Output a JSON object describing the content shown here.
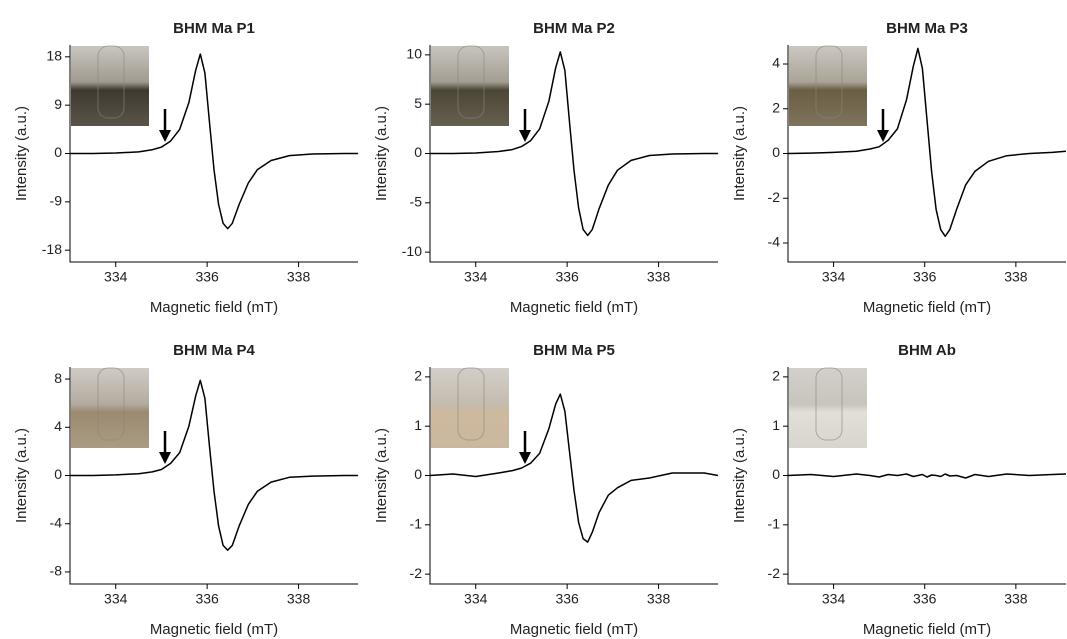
{
  "chart_data": [
    {
      "type": "line",
      "title": "BHM Ma P1",
      "xlabel": "Magnetic field (mT)",
      "ylabel": "Intensity (a.u.)",
      "color": "#000000",
      "xlim": [
        333,
        339.3
      ],
      "xticks": [
        334,
        336,
        338
      ],
      "ylim": [
        -20.2,
        20.2
      ],
      "yticks": [
        -18,
        -9,
        0,
        9,
        18
      ],
      "x": [
        333,
        333.5,
        334,
        334.5,
        334.8,
        335,
        335.2,
        335.4,
        335.6,
        335.75,
        335.85,
        335.95,
        336.05,
        336.15,
        336.25,
        336.35,
        336.45,
        336.55,
        336.7,
        336.9,
        337.1,
        337.4,
        337.8,
        338.3,
        339,
        339.3
      ],
      "values": [
        0,
        0,
        0.1,
        0.3,
        0.7,
        1.2,
        2.3,
        4.5,
        9.5,
        15.5,
        18.5,
        15,
        6,
        -3,
        -9.5,
        -13,
        -14,
        -13,
        -9.5,
        -5.5,
        -3,
        -1.3,
        -0.4,
        -0.1,
        0,
        0
      ]
    },
    {
      "type": "line",
      "title": "BHM Ma P2",
      "xlabel": "Magnetic field (mT)",
      "ylabel": "Intensity (a.u.)",
      "color": "#000000",
      "xlim": [
        333,
        339.3
      ],
      "xticks": [
        334,
        336,
        338
      ],
      "ylim": [
        -11,
        11
      ],
      "yticks": [
        -10,
        -5,
        0,
        5,
        10
      ],
      "x": [
        333,
        333.5,
        334,
        334.5,
        334.8,
        335,
        335.2,
        335.4,
        335.6,
        335.75,
        335.85,
        335.95,
        336.05,
        336.15,
        336.25,
        336.35,
        336.45,
        336.55,
        336.7,
        336.9,
        337.1,
        337.4,
        337.8,
        338.3,
        339,
        339.3
      ],
      "values": [
        0,
        0,
        0.05,
        0.2,
        0.4,
        0.7,
        1.3,
        2.5,
        5.3,
        8.7,
        10.3,
        8.4,
        3.3,
        -1.7,
        -5.5,
        -7.7,
        -8.3,
        -7.7,
        -5.6,
        -3.2,
        -1.7,
        -0.7,
        -0.2,
        -0.05,
        0,
        0
      ]
    },
    {
      "type": "line",
      "title": "BHM Ma P3",
      "xlabel": "Magnetic field (mT)",
      "ylabel": "Intensity (a.u.)",
      "color": "#000000",
      "xlim": [
        333,
        339.1
      ],
      "xticks": [
        334,
        336,
        338
      ],
      "ylim": [
        -4.85,
        4.85
      ],
      "yticks": [
        -4,
        -2,
        0,
        2,
        4
      ],
      "x": [
        333,
        333.5,
        334,
        334.5,
        334.8,
        335,
        335.2,
        335.4,
        335.6,
        335.75,
        335.85,
        335.95,
        336.05,
        336.15,
        336.25,
        336.35,
        336.45,
        336.55,
        336.7,
        336.9,
        337.1,
        337.4,
        337.8,
        338.3,
        338.8,
        339.1
      ],
      "values": [
        0,
        0.02,
        0.05,
        0.1,
        0.2,
        0.3,
        0.6,
        1.1,
        2.4,
        3.9,
        4.7,
        3.8,
        1.5,
        -0.8,
        -2.5,
        -3.4,
        -3.7,
        -3.4,
        -2.5,
        -1.4,
        -0.8,
        -0.35,
        -0.1,
        0,
        0.05,
        0.1
      ]
    },
    {
      "type": "line",
      "title": "BHM Ma P4",
      "xlabel": "Magnetic field (mT)",
      "ylabel": "Intensity (a.u.)",
      "color": "#000000",
      "xlim": [
        333,
        339.3
      ],
      "xticks": [
        334,
        336,
        338
      ],
      "ylim": [
        -9,
        9
      ],
      "yticks": [
        -8,
        -4,
        0,
        4,
        8
      ],
      "x": [
        333,
        333.5,
        334,
        334.5,
        334.8,
        335,
        335.2,
        335.4,
        335.6,
        335.75,
        335.85,
        335.95,
        336.05,
        336.15,
        336.25,
        336.35,
        336.45,
        336.55,
        336.7,
        336.9,
        337.1,
        337.4,
        337.8,
        338.3,
        339,
        339.3
      ],
      "values": [
        0,
        0,
        0.05,
        0.15,
        0.3,
        0.5,
        1,
        1.9,
        4.1,
        6.6,
        7.9,
        6.4,
        2.5,
        -1.3,
        -4.2,
        -5.8,
        -6.2,
        -5.8,
        -4.2,
        -2.4,
        -1.3,
        -0.55,
        -0.15,
        -0.05,
        0,
        0
      ]
    },
    {
      "type": "line",
      "title": "BHM Ma P5",
      "xlabel": "Magnetic field (mT)",
      "ylabel": "Intensity (a.u.)",
      "color": "#000000",
      "xlim": [
        333,
        339.3
      ],
      "xticks": [
        334,
        336,
        338
      ],
      "ylim": [
        -2.2,
        2.2
      ],
      "yticks": [
        -2,
        -1,
        0,
        1,
        2
      ],
      "x": [
        333,
        333.5,
        334,
        334.5,
        334.8,
        335,
        335.2,
        335.4,
        335.6,
        335.75,
        335.85,
        335.95,
        336.05,
        336.15,
        336.25,
        336.35,
        336.45,
        336.55,
        336.7,
        336.9,
        337.1,
        337.4,
        337.8,
        338.3,
        339,
        339.3
      ],
      "values": [
        0,
        0.03,
        -0.02,
        0.05,
        0.1,
        0.15,
        0.25,
        0.45,
        0.95,
        1.45,
        1.65,
        1.3,
        0.5,
        -0.3,
        -0.95,
        -1.28,
        -1.35,
        -1.15,
        -0.75,
        -0.4,
        -0.25,
        -0.1,
        -0.05,
        0.05,
        0.05,
        0
      ]
    },
    {
      "type": "line",
      "title": "BHM Ab",
      "xlabel": "Magnetic field (mT)",
      "ylabel": "Intensity (a.u.)",
      "color": "#000000",
      "xlim": [
        333,
        339.1
      ],
      "xticks": [
        334,
        336,
        338
      ],
      "ylim": [
        -2.2,
        2.2
      ],
      "yticks": [
        -2,
        -1,
        0,
        1,
        2
      ],
      "x": [
        333,
        333.5,
        334,
        334.5,
        334.8,
        335,
        335.2,
        335.4,
        335.6,
        335.75,
        335.85,
        335.95,
        336.05,
        336.15,
        336.25,
        336.35,
        336.45,
        336.55,
        336.7,
        336.9,
        337.1,
        337.4,
        337.8,
        338.3,
        338.8,
        339.1
      ],
      "values": [
        0,
        0.02,
        -0.02,
        0.03,
        0,
        -0.03,
        0.02,
        0,
        0.03,
        -0.02,
        0,
        0.02,
        -0.03,
        0.01,
        0,
        -0.02,
        0.03,
        -0.01,
        0,
        -0.05,
        0.02,
        -0.02,
        0.03,
        0,
        0.02,
        0.03
      ]
    }
  ]
}
